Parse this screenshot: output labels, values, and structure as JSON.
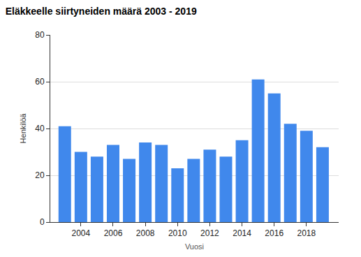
{
  "chart_data": {
    "type": "bar",
    "title": "Eläkkeelle siirtyneiden määrä 2003 - 2019",
    "x_label": "Vuosi",
    "y_label": "Henkilöä",
    "x": [
      2003,
      2004,
      2005,
      2006,
      2007,
      2008,
      2009,
      2010,
      2011,
      2012,
      2013,
      2014,
      2015,
      2016,
      2017,
      2018,
      2019
    ],
    "values": [
      41,
      30,
      28,
      33,
      27,
      34,
      33,
      23,
      27,
      31,
      28,
      35,
      61,
      55,
      42,
      39,
      32
    ],
    "color": "#4088ec",
    "xlim": [
      2002.1,
      2020
    ],
    "xticks": [
      2004,
      2006,
      2008,
      2010,
      2012,
      2014,
      2016,
      2018
    ],
    "ylim": [
      0,
      80
    ],
    "yticks": [
      0,
      20,
      40,
      60,
      80
    ],
    "grid": true
  }
}
